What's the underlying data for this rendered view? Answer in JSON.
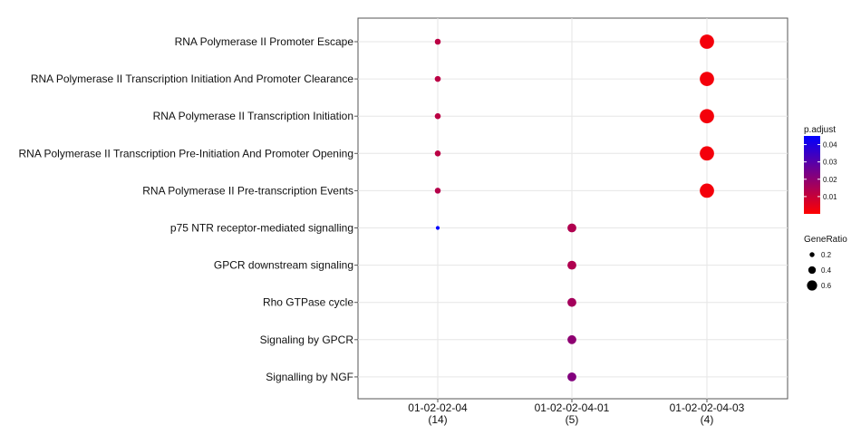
{
  "chart_data": {
    "type": "scatter",
    "xlabel": "",
    "ylabel": "",
    "categories_x": [
      {
        "label": "01-02-02-04",
        "count": "(14)"
      },
      {
        "label": "01-02-02-04-01",
        "count": "(5)"
      },
      {
        "label": "01-02-02-04-03",
        "count": "(4)"
      }
    ],
    "categories_y": [
      "RNA Polymerase II Promoter Escape",
      "RNA Polymerase II Transcription Initiation And Promoter Clearance",
      "RNA Polymerase II Transcription Initiation",
      "RNA Polymerase II Transcription Pre-Initiation And Promoter Opening",
      "RNA Polymerase II Pre-transcription Events",
      "p75 NTR receptor-mediated signalling",
      "GPCR downstream signaling",
      "Rho GTPase cycle",
      "Signaling by GPCR",
      "Signalling by NGF"
    ],
    "points": [
      {
        "x": "01-02-02-04",
        "y": "RNA Polymerase II Promoter Escape",
        "gene_ratio": 0.21,
        "p_adjust": 0.012
      },
      {
        "x": "01-02-02-04",
        "y": "RNA Polymerase II Transcription Initiation And Promoter Clearance",
        "gene_ratio": 0.21,
        "p_adjust": 0.012
      },
      {
        "x": "01-02-02-04",
        "y": "RNA Polymerase II Transcription Initiation",
        "gene_ratio": 0.21,
        "p_adjust": 0.012
      },
      {
        "x": "01-02-02-04",
        "y": "RNA Polymerase II Transcription Pre-Initiation And Promoter Opening",
        "gene_ratio": 0.21,
        "p_adjust": 0.012
      },
      {
        "x": "01-02-02-04",
        "y": "RNA Polymerase II Pre-transcription Events",
        "gene_ratio": 0.21,
        "p_adjust": 0.013
      },
      {
        "x": "01-02-02-04",
        "y": "p75 NTR receptor-mediated signalling",
        "gene_ratio": 0.07,
        "p_adjust": 0.045
      },
      {
        "x": "01-02-02-04-01",
        "y": "p75 NTR receptor-mediated signalling",
        "gene_ratio": 0.4,
        "p_adjust": 0.014
      },
      {
        "x": "01-02-02-04-01",
        "y": "GPCR downstream signaling",
        "gene_ratio": 0.4,
        "p_adjust": 0.014
      },
      {
        "x": "01-02-02-04-01",
        "y": "Rho GTPase cycle",
        "gene_ratio": 0.4,
        "p_adjust": 0.016
      },
      {
        "x": "01-02-02-04-01",
        "y": "Signaling by GPCR",
        "gene_ratio": 0.4,
        "p_adjust": 0.02
      },
      {
        "x": "01-02-02-04-01",
        "y": "Signalling by NGF",
        "gene_ratio": 0.4,
        "p_adjust": 0.022
      },
      {
        "x": "01-02-02-04-03",
        "y": "RNA Polymerase II Promoter Escape",
        "gene_ratio": 0.75,
        "p_adjust": 0.002
      },
      {
        "x": "01-02-02-04-03",
        "y": "RNA Polymerase II Transcription Initiation And Promoter Clearance",
        "gene_ratio": 0.75,
        "p_adjust": 0.002
      },
      {
        "x": "01-02-02-04-03",
        "y": "RNA Polymerase II Transcription Initiation",
        "gene_ratio": 0.75,
        "p_adjust": 0.002
      },
      {
        "x": "01-02-02-04-03",
        "y": "RNA Polymerase II Transcription Pre-Initiation And Promoter Opening",
        "gene_ratio": 0.75,
        "p_adjust": 0.002
      },
      {
        "x": "01-02-02-04-03",
        "y": "RNA Polymerase II Pre-transcription Events",
        "gene_ratio": 0.75,
        "p_adjust": 0.002
      }
    ],
    "grid": true,
    "legend_position": "right",
    "color_legend": {
      "title": "p.adjust",
      "min": 0.0,
      "max": 0.045,
      "ticks": [
        0.04,
        0.03,
        0.02,
        0.01
      ],
      "tick_labels": [
        "0.04",
        "0.03",
        "0.02",
        "0.01"
      ],
      "low_color": "#ff0000",
      "high_color": "#0000ff"
    },
    "size_legend": {
      "title": "GeneRatio",
      "values": [
        0.2,
        0.4,
        0.6
      ],
      "labels": [
        "0.2",
        "0.4",
        "0.6"
      ]
    }
  }
}
